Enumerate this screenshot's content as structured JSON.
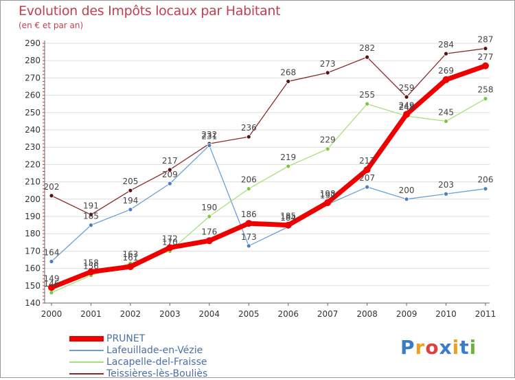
{
  "header": {
    "title": "Evolution des Impôts locaux par Habitant",
    "subtitle": "(en € et par an)"
  },
  "logo": {
    "letters": [
      "P",
      "r",
      "o",
      "x",
      "i",
      "t",
      "i"
    ],
    "colors": [
      "#3b7dc4",
      "#f0a020",
      "#e04040",
      "#3b7dc4",
      "#f0a020",
      "#3b7dc4",
      "#6db33f"
    ]
  },
  "chart_data": {
    "type": "line",
    "title": "Evolution des Impôts locaux par Habitant",
    "subtitle": "(en € et par an)",
    "x": [
      "2000",
      "2001",
      "2002",
      "2003",
      "2004",
      "2005",
      "2006",
      "2007",
      "2008",
      "2009",
      "2010",
      "2011"
    ],
    "ylim": [
      140,
      290
    ],
    "yticks": [
      140,
      150,
      160,
      170,
      180,
      190,
      200,
      210,
      220,
      230,
      240,
      250,
      260,
      270,
      280,
      290
    ],
    "grid": "horizontal",
    "legend_position": "bottom-left",
    "series": [
      {
        "name": "PRUNET",
        "color": "#ee0000",
        "marker": "#ee0000",
        "width": 7,
        "values": [
          149,
          158,
          161,
          172,
          176,
          186,
          185,
          198,
          217,
          249,
          269,
          277
        ],
        "labels": [
          "149",
          "158",
          "161",
          "172",
          "176",
          "186",
          "185",
          "198",
          "217",
          "249",
          "269",
          "277"
        ]
      },
      {
        "name": "Lafeuillade-en-Vézie",
        "color": "#6a9fd4",
        "marker": "#4a7fc0",
        "width": 1.3,
        "values": [
          164,
          185,
          194,
          209,
          231,
          173,
          184,
          197,
          207,
          200,
          203,
          206
        ],
        "labels": [
          "164",
          "185",
          "194",
          "209",
          "231",
          "173",
          "184",
          "197",
          "207",
          "200",
          "203",
          "206"
        ]
      },
      {
        "name": "Lacapelle-del-Fraisse",
        "color": "#a8e07a",
        "marker": "#7dc742",
        "width": 1.3,
        "values": [
          146,
          156,
          163,
          170,
          190,
          206,
          219,
          229,
          255,
          248,
          245,
          258
        ],
        "labels": [
          "146",
          "156",
          "163",
          "170",
          "190",
          "206",
          "219",
          "229",
          "255",
          "248",
          "245",
          "258"
        ]
      },
      {
        "name": "Teissières-lès-Bouliès",
        "color": "#8a2a2a",
        "marker": "#5a1010",
        "width": 1.3,
        "values": [
          202,
          191,
          205,
          217,
          232,
          236,
          268,
          273,
          282,
          259,
          284,
          287
        ],
        "labels": [
          "202",
          "191",
          "205",
          "217",
          "232",
          "236",
          "268",
          "273",
          "282",
          "259",
          "284",
          "287"
        ]
      }
    ]
  }
}
